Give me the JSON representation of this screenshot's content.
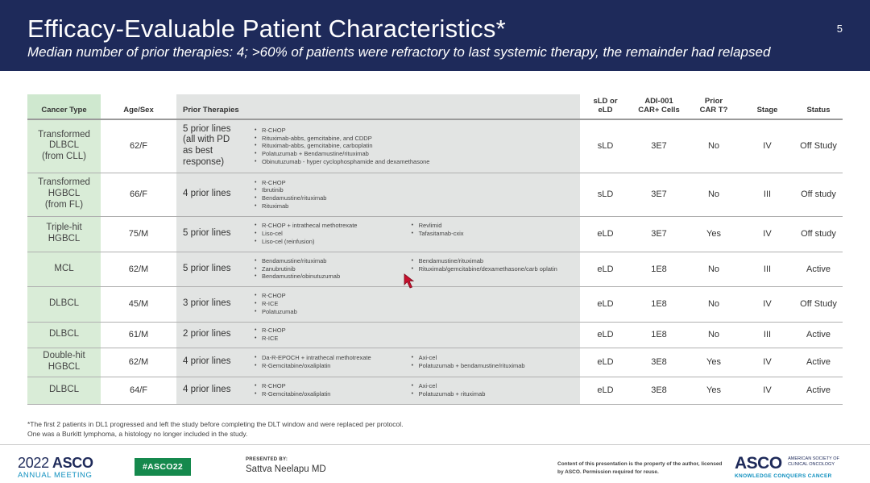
{
  "slide": {
    "title": "Efficacy-Evaluable Patient Characteristics*",
    "subtitle": "Median number of prior therapies: 4; >60% of patients were refractory to last systemic therapy, the remainder had relapsed",
    "number": "5"
  },
  "table": {
    "headers": {
      "cancer_type": "Cancer Type",
      "age_sex": "Age/Sex",
      "prior_therapies": "Prior Therapies",
      "sld_1": "sLD or",
      "sld_2": "eLD",
      "cells_1": "ADI-001",
      "cells_2": "CAR+ Cells",
      "car_1": "Prior",
      "car_2": "CAR T?",
      "stage": "Stage",
      "status": "Status"
    },
    "rows": [
      {
        "cancer": [
          "Transformed",
          "DLBCL",
          "(from CLL)"
        ],
        "age_sex": "62/F",
        "lines": [
          "5 prior lines",
          "(all with PD",
          "as best",
          "response)"
        ],
        "therapies_col1": [
          "R-CHOP",
          "Rituximab-abbs, gemcitabine, and CDDP",
          "Rituximab-abbs, gemcitabine, carboplatin",
          "Polatuzumab + Bendamustine/rituximab",
          "Obinutuzumab - hyper cyclophosphamide and dexamethasone"
        ],
        "therapies_col2": [],
        "ld": "sLD",
        "cells": "3E7",
        "prior_car": "No",
        "stage": "IV",
        "status": "Off Study"
      },
      {
        "cancer": [
          "Transformed",
          "HGBCL",
          "(from FL)"
        ],
        "age_sex": "66/F",
        "lines": [
          "4 prior lines"
        ],
        "therapies_col1": [
          "R-CHOP",
          "Ibrutinib",
          "Bendamustine/rituximab",
          "Rituximab"
        ],
        "therapies_col2": [],
        "ld": "sLD",
        "cells": "3E7",
        "prior_car": "No",
        "stage": "III",
        "status": "Off study"
      },
      {
        "cancer": [
          "Triple-hit",
          "HGBCL"
        ],
        "age_sex": "75/M",
        "lines": [
          "5 prior lines"
        ],
        "therapies_col1": [
          "R-CHOP + intrathecal methotrexate",
          "Liso-cel",
          "Liso-cel (reinfusion)"
        ],
        "therapies_col2": [
          "Revlimid",
          "Tafasitamab-cxix"
        ],
        "ld": "eLD",
        "cells": "3E7",
        "prior_car": "Yes",
        "stage": "IV",
        "status": "Off study"
      },
      {
        "cancer": [
          "MCL"
        ],
        "age_sex": "62/M",
        "lines": [
          "5 prior lines"
        ],
        "therapies_col1": [
          "Bendamustine/rituximab",
          "Zanubrutinib",
          "Bendamustine/obinutuzumab"
        ],
        "therapies_col2": [
          "Bendamustine/rituximab",
          "Rituximab/gemcitabine/dexamethasone/carb oplatin"
        ],
        "ld": "eLD",
        "cells": "1E8",
        "prior_car": "No",
        "stage": "III",
        "status": "Active"
      },
      {
        "cancer": [
          "DLBCL"
        ],
        "age_sex": "45/M",
        "lines": [
          "3 prior lines"
        ],
        "therapies_col1": [
          "R-CHOP",
          "R-ICE",
          "Polatuzumab"
        ],
        "therapies_col2": [],
        "ld": "eLD",
        "cells": "1E8",
        "prior_car": "No",
        "stage": "IV",
        "status": "Off Study"
      },
      {
        "cancer": [
          "DLBCL"
        ],
        "age_sex": "61/M",
        "lines": [
          "2 prior lines"
        ],
        "therapies_col1": [
          "R-CHOP",
          "R-ICE"
        ],
        "therapies_col2": [],
        "ld": "eLD",
        "cells": "1E8",
        "prior_car": "No",
        "stage": "III",
        "status": "Active"
      },
      {
        "cancer": [
          "Double-hit",
          "HGBCL"
        ],
        "age_sex": "62/M",
        "lines": [
          "4 prior lines"
        ],
        "therapies_col1": [
          "Da-R-EPOCH + intrathecal methotrexate",
          "R-Gemcitabine/oxaliplatin"
        ],
        "therapies_col2": [
          "Axi-cel",
          "Polatuzumab + bendamustine/rituximab"
        ],
        "ld": "eLD",
        "cells": "3E8",
        "prior_car": "Yes",
        "stage": "IV",
        "status": "Active"
      },
      {
        "cancer": [
          "DLBCL"
        ],
        "age_sex": "64/F",
        "lines": [
          "4 prior lines"
        ],
        "therapies_col1": [
          "R-CHOP",
          "R-Gemcitabine/oxaliplatin"
        ],
        "therapies_col2": [
          "Axi-cel",
          "Polatuzumab + rituximab"
        ],
        "ld": "eLD",
        "cells": "3E8",
        "prior_car": "Yes",
        "stage": "IV",
        "status": "Active"
      }
    ]
  },
  "footnote": {
    "line1": "*The first 2 patients in DL1 progressed and left the study before completing the DLT window and were replaced per protocol.",
    "line2": "One was a Burkitt lymphoma, a histology no longer included in the study."
  },
  "footer": {
    "logo_year": "2022",
    "logo_name": "ASCO",
    "logo_sub": "ANNUAL MEETING",
    "hashtag": "#ASCO22",
    "presented_by": "PRESENTED BY:",
    "presenter": "Sattva Neelapu MD",
    "copyright": "Content of this presentation is the property of the author, licensed by ASCO. Permission required for reuse.",
    "asco_logo": "ASCO",
    "asco_society": [
      "AMERICAN SOCIETY OF",
      "CLINICAL ONCOLOGY"
    ],
    "asco_tagline": "KNOWLEDGE CONQUERS CANCER"
  },
  "colors": {
    "header_bg": "#1e2a5a",
    "cancer_col_bg": "#d9ecd7",
    "therapies_col_bg": "#e2e4e3",
    "hashtag_bg": "#15894d",
    "cursor": "#c8102e"
  },
  "icons": {
    "cursor": "mouse-pointer-icon"
  }
}
